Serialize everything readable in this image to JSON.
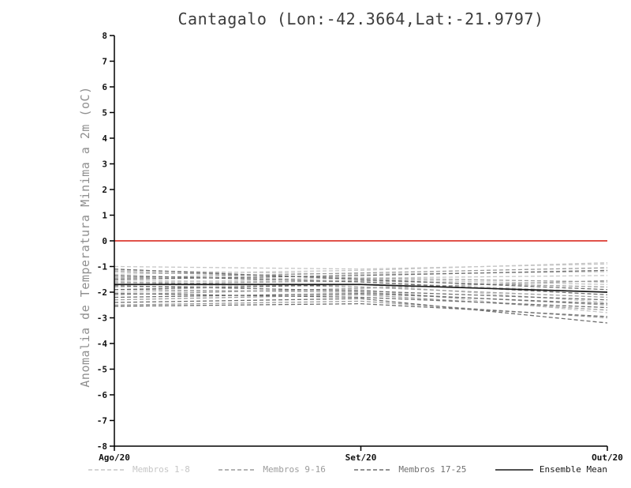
{
  "page": {
    "background": "#ffffff"
  },
  "chart_data": {
    "type": "line",
    "title": "Cantagalo (Lon:-42.3664,Lat:-21.9797)",
    "ylabel": "Anomalia de Temperatura Minima a 2m (oC)",
    "xlabel": "",
    "categories": [
      "Ago/20",
      "Set/20",
      "Out/20"
    ],
    "ylim": [
      -8,
      8
    ],
    "ytick_step": 1,
    "grid": false,
    "legend_position": "bottom",
    "zero_line": {
      "y": 0,
      "color": "#e0524a"
    },
    "groups": {
      "membros_1_8": {
        "label": "Membros 1-8",
        "color": "#c6c6c6",
        "dashed": true
      },
      "membros_9_16": {
        "label": "Membros 9-16",
        "color": "#9c9c9c",
        "dashed": true
      },
      "membros_17_25": {
        "label": "Membros 17-25",
        "color": "#6f6f6f",
        "dashed": true
      },
      "ensemble_mean": {
        "label": "Ensemble Mean",
        "color": "#1a1a1a",
        "dashed": false
      }
    },
    "series": [
      {
        "name": "m01",
        "group": "membros_1_8",
        "values": [
          -1.0,
          -1.1,
          -0.9
        ]
      },
      {
        "name": "m02",
        "group": "membros_1_8",
        "values": [
          -1.15,
          -1.3,
          -1.2
        ]
      },
      {
        "name": "m03",
        "group": "membros_1_8",
        "values": [
          -1.3,
          -1.15,
          -0.85
        ]
      },
      {
        "name": "m04",
        "group": "membros_1_8",
        "values": [
          -1.4,
          -1.5,
          -1.7
        ]
      },
      {
        "name": "m05",
        "group": "membros_1_8",
        "values": [
          -1.55,
          -1.6,
          -2.0
        ]
      },
      {
        "name": "m06",
        "group": "membros_1_8",
        "values": [
          -1.65,
          -1.45,
          -1.35
        ]
      },
      {
        "name": "m07",
        "group": "membros_1_8",
        "values": [
          -1.8,
          -1.7,
          -2.4
        ]
      },
      {
        "name": "m08",
        "group": "membros_1_8",
        "values": [
          -2.0,
          -1.9,
          -2.8
        ]
      },
      {
        "name": "m09",
        "group": "membros_9_16",
        "values": [
          -1.2,
          -1.45,
          -1.6
        ]
      },
      {
        "name": "m10",
        "group": "membros_9_16",
        "values": [
          -1.45,
          -1.25,
          -1.05
        ]
      },
      {
        "name": "m11",
        "group": "membros_9_16",
        "values": [
          -1.6,
          -1.8,
          -2.2
        ]
      },
      {
        "name": "m12",
        "group": "membros_9_16",
        "values": [
          -1.7,
          -1.55,
          -1.8
        ]
      },
      {
        "name": "m13",
        "group": "membros_9_16",
        "values": [
          -1.9,
          -2.0,
          -2.5
        ]
      },
      {
        "name": "m14",
        "group": "membros_9_16",
        "values": [
          -2.1,
          -1.85,
          -1.55
        ]
      },
      {
        "name": "m15",
        "group": "membros_9_16",
        "values": [
          -2.3,
          -2.1,
          -2.7
        ]
      },
      {
        "name": "m16",
        "group": "membros_9_16",
        "values": [
          -2.5,
          -2.35,
          -3.0
        ]
      },
      {
        "name": "m17",
        "group": "membros_17_25",
        "values": [
          -1.1,
          -1.5,
          -1.9
        ]
      },
      {
        "name": "m18",
        "group": "membros_17_25",
        "values": [
          -1.35,
          -1.6,
          -2.1
        ]
      },
      {
        "name": "m19",
        "group": "membros_17_25",
        "values": [
          -1.5,
          -1.35,
          -1.15
        ]
      },
      {
        "name": "m20",
        "group": "membros_17_25",
        "values": [
          -1.75,
          -1.95,
          -2.3
        ]
      },
      {
        "name": "m21",
        "group": "membros_17_25",
        "values": [
          -1.9,
          -1.7,
          -2.0
        ]
      },
      {
        "name": "m22",
        "group": "membros_17_25",
        "values": [
          -2.05,
          -2.2,
          -2.6
        ]
      },
      {
        "name": "m23",
        "group": "membros_17_25",
        "values": [
          -2.2,
          -2.05,
          -2.45
        ]
      },
      {
        "name": "m24",
        "group": "membros_17_25",
        "values": [
          -2.4,
          -2.25,
          -3.2
        ]
      },
      {
        "name": "m25",
        "group": "membros_17_25",
        "values": [
          -2.55,
          -2.45,
          -2.95
        ]
      },
      {
        "name": "mean",
        "group": "ensemble_mean",
        "values": [
          -1.7,
          -1.7,
          -2.0
        ]
      }
    ],
    "legend": [
      "membros_1_8",
      "membros_9_16",
      "membros_17_25",
      "ensemble_mean"
    ]
  },
  "axis": {
    "color": "#000000",
    "tick_label_color": "#111111"
  }
}
